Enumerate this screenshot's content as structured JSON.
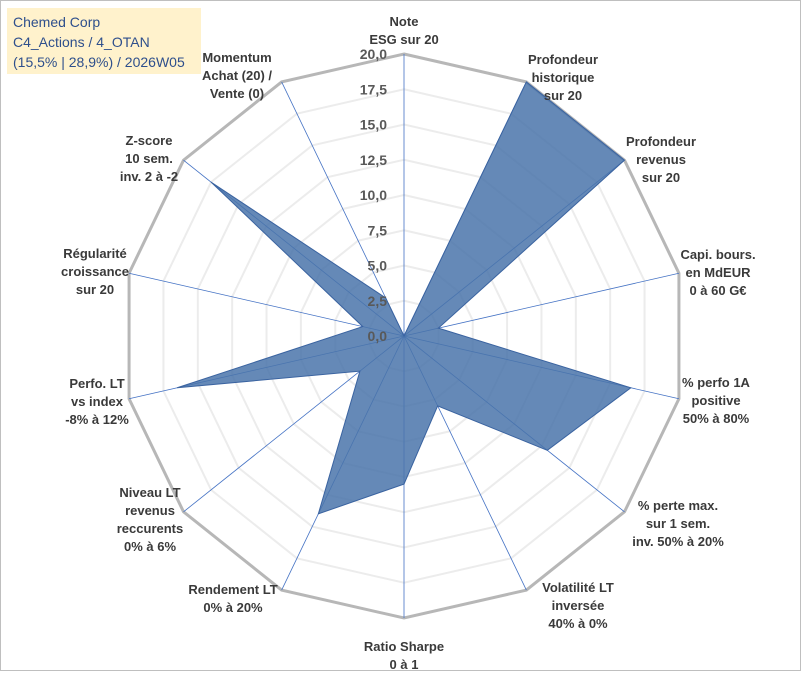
{
  "title_box": {
    "line1": "Chemed Corp",
    "line2": "C4_Actions / 4_OTAN",
    "line3": "(15,5% | 28,9%) / 2026W05"
  },
  "chart_data": {
    "type": "radar",
    "rmin": 0,
    "rmax": 20,
    "tick_labels": [
      "0,0",
      "2,5",
      "5,0",
      "7,5",
      "10,0",
      "12,5",
      "15,0",
      "17,5",
      "20,0"
    ],
    "axes": [
      {
        "label": [
          "Note",
          "ESG sur 20"
        ],
        "value": 0
      },
      {
        "label": [
          "Profondeur",
          "historique",
          "sur 20"
        ],
        "value": 20
      },
      {
        "label": [
          "Profondeur",
          "revenus",
          "sur 20"
        ],
        "value": 20
      },
      {
        "label": [
          "Capi. bours.",
          "en MdEUR",
          "0 à 60 G€"
        ],
        "value": 2.5
      },
      {
        "label": [
          "% perfo 1A",
          "positive",
          "50% à 80%"
        ],
        "value": 16.5
      },
      {
        "label": [
          "% perte max.",
          "sur 1 sem.",
          "inv. 50% à 20%"
        ],
        "value": 13
      },
      {
        "label": [
          "Volatilité LT",
          "inversée",
          "40% à 0%"
        ],
        "value": 5.5
      },
      {
        "label": [
          "Ratio Sharpe",
          "0 à 1"
        ],
        "value": 10.5
      },
      {
        "label": [
          "Rendement LT",
          "0% à 20%"
        ],
        "value": 14
      },
      {
        "label": [
          "Niveau LT",
          "revenus",
          "reccurents",
          "0% à 6%"
        ],
        "value": 4
      },
      {
        "label": [
          "Perfo. LT",
          "vs index",
          "-8% à 12%"
        ],
        "value": 16.5
      },
      {
        "label": [
          "Régularité",
          "croissance",
          "sur 20"
        ],
        "value": 3
      },
      {
        "label": [
          "Z-score",
          "10 sem.",
          "inv. 2 à -2"
        ],
        "value": 17.5
      },
      {
        "label": [
          "Momentum",
          "Achat (20) /",
          "Vente (0)"
        ],
        "value": 3
      }
    ],
    "colors": {
      "fill": "#4a74aa",
      "stroke": "#3a63a0",
      "outer_grid": "#b7b7b7",
      "inner_grid": "#ececec",
      "spoke": "#4472c4"
    }
  }
}
